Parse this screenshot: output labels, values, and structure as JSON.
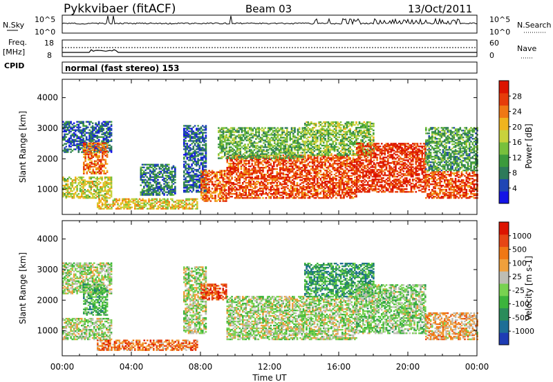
{
  "header": {
    "station": "Pykkvibaer (fitACF)",
    "beam": "Beam 03",
    "date": "13/Oct/2011"
  },
  "status_panels": {
    "nsky": {
      "label": "N.Sky",
      "ticks": [
        "10^5",
        "10^0"
      ]
    },
    "nsearch": {
      "label": "N.Search",
      "ticks": [
        "10^5",
        "10^0"
      ]
    },
    "freq": {
      "label_top": "Freq.",
      "label_unit": "[MHz]",
      "ticks": [
        "18",
        "8"
      ]
    },
    "nave": {
      "label": "Nave",
      "ticks": [
        "60",
        "0"
      ]
    },
    "cpid": {
      "label": "CPID",
      "value": "normal (fast stereo) 153"
    }
  },
  "x_axis": {
    "title": "Time UT",
    "ticks": [
      "00:00",
      "04:00",
      "08:00",
      "12:00",
      "16:00",
      "20:00",
      "00:00"
    ]
  },
  "chart_data": [
    {
      "type": "heatmap",
      "panel": "power",
      "ylabel": "Slant Range [km]",
      "ylim": [
        180,
        4600
      ],
      "yticks": [
        1000,
        2000,
        3000,
        4000
      ],
      "xlim": [
        0,
        24
      ],
      "colorbar": {
        "label": "Power [dB]",
        "ticks": [
          "28",
          "24",
          "20",
          "16",
          "12",
          "8",
          "4"
        ],
        "colors": [
          "#1414e6",
          "#2046b4",
          "#2e7a5a",
          "#3c9a3c",
          "#78c03c",
          "#c8d23c",
          "#f0b41e",
          "#f07814",
          "#e63c0a",
          "#dc1400"
        ]
      },
      "regions": [
        {
          "t": [
            0.0,
            2.8
          ],
          "r": [
            2200,
            3200
          ],
          "level": 0.2
        },
        {
          "t": [
            0.0,
            2.8
          ],
          "r": [
            700,
            1400
          ],
          "level": 0.55
        },
        {
          "t": [
            1.2,
            2.6
          ],
          "r": [
            1500,
            2500
          ],
          "level": 0.75
        },
        {
          "t": [
            2.0,
            7.8
          ],
          "r": [
            350,
            700
          ],
          "level": 0.6
        },
        {
          "t": [
            4.5,
            6.5
          ],
          "r": [
            800,
            1800
          ],
          "level": 0.25
        },
        {
          "t": [
            7.0,
            8.3
          ],
          "r": [
            900,
            3100
          ],
          "level": 0.2
        },
        {
          "t": [
            8.0,
            9.5
          ],
          "r": [
            600,
            1600
          ],
          "level": 0.8
        },
        {
          "t": [
            9.5,
            17.0
          ],
          "r": [
            700,
            2100
          ],
          "level": 0.85
        },
        {
          "t": [
            9.0,
            14.0
          ],
          "r": [
            2000,
            3000
          ],
          "level": 0.4
        },
        {
          "t": [
            14.0,
            18.0
          ],
          "r": [
            2100,
            3200
          ],
          "level": 0.45
        },
        {
          "t": [
            17.0,
            21.0
          ],
          "r": [
            900,
            2500
          ],
          "level": 0.9
        },
        {
          "t": [
            21.0,
            24.0
          ],
          "r": [
            700,
            1600
          ],
          "level": 0.85
        },
        {
          "t": [
            21.0,
            24.0
          ],
          "r": [
            1600,
            3000
          ],
          "level": 0.35
        }
      ]
    },
    {
      "type": "heatmap",
      "panel": "velocity",
      "ylabel": "Slant Range [km]",
      "ylim": [
        180,
        4600
      ],
      "yticks": [
        1000,
        2000,
        3000,
        4000
      ],
      "xlim": [
        0,
        24
      ],
      "colorbar": {
        "label": "Velocity [m s-1]",
        "ticks": [
          "1000",
          "500",
          "100",
          "25",
          "-25",
          "-100",
          "-500",
          "-1000"
        ],
        "colors": [
          "#1e3cb4",
          "#1e6e96",
          "#2a8c5a",
          "#3cb43c",
          "#78d250",
          "#bebeb4",
          "#f0a03c",
          "#f07814",
          "#e64614",
          "#dc1400"
        ]
      },
      "regions": [
        {
          "t": [
            0.0,
            2.8
          ],
          "r": [
            2200,
            3200
          ],
          "level": 0.5
        },
        {
          "t": [
            0.0,
            2.8
          ],
          "r": [
            700,
            1400
          ],
          "level": 0.5
        },
        {
          "t": [
            1.2,
            2.6
          ],
          "r": [
            1500,
            2500
          ],
          "level": 0.35
        },
        {
          "t": [
            2.0,
            7.8
          ],
          "r": [
            350,
            700
          ],
          "level": 0.75
        },
        {
          "t": [
            7.0,
            8.3
          ],
          "r": [
            900,
            3100
          ],
          "level": 0.5
        },
        {
          "t": [
            8.0,
            9.5
          ],
          "r": [
            2000,
            2500
          ],
          "level": 0.85
        },
        {
          "t": [
            9.5,
            17.0
          ],
          "r": [
            700,
            2100
          ],
          "level": 0.5
        },
        {
          "t": [
            14.0,
            18.0
          ],
          "r": [
            2100,
            3200
          ],
          "level": 0.3
        },
        {
          "t": [
            17.0,
            21.0
          ],
          "r": [
            900,
            2500
          ],
          "level": 0.45
        },
        {
          "t": [
            21.0,
            24.0
          ],
          "r": [
            700,
            1600
          ],
          "level": 0.65
        }
      ]
    }
  ]
}
